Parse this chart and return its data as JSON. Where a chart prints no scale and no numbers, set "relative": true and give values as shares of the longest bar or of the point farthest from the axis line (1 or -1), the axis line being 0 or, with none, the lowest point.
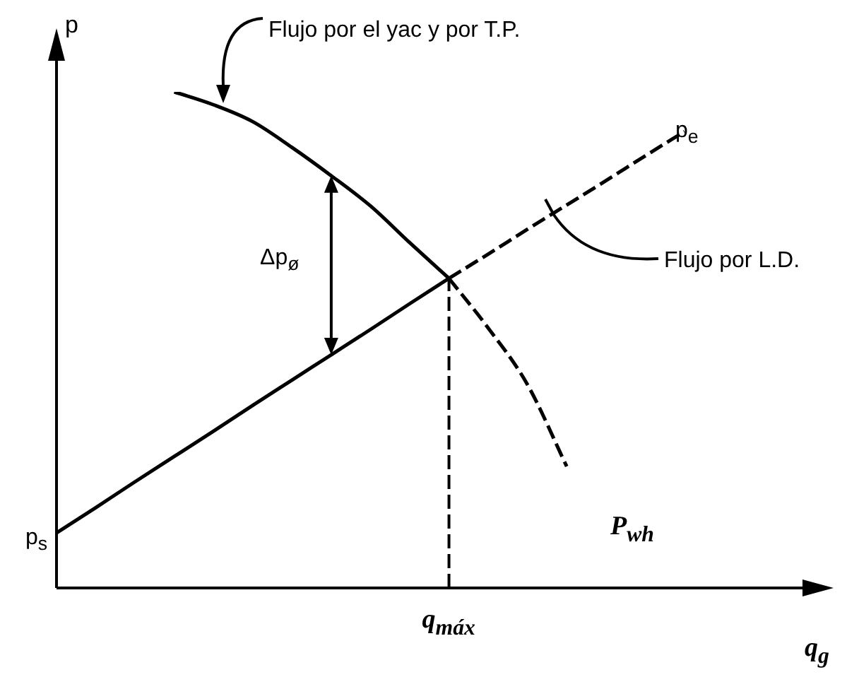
{
  "chart_data": {
    "type": "line",
    "relative": true,
    "xlabel": "q$_{g}$",
    "ylabel": "p",
    "legend": false,
    "categories": [
      null,
      null,
      null,
      null,
      null,
      null,
      null,
      null,
      null,
      null,
      null,
      null,
      null,
      null,
      null,
      null,
      null,
      null,
      null
    ],
    "series": [
      {
        "values": [
          0.111,
          0.162,
          0.214,
          0.265,
          0.316,
          0.368,
          0.419,
          0.47,
          0.521,
          0.573,
          0.624,
          null,
          null,
          null,
          null,
          null,
          null,
          null,
          null
        ],
        "color": "#000000",
        "line_style": "solid"
      },
      {
        "values": [
          null,
          null,
          null,
          null,
          null,
          null,
          null,
          null,
          null,
          null,
          0.624,
          0.673,
          0.723,
          0.772,
          0.821,
          0.871,
          0.92,
          null,
          null
        ],
        "color": "#000000",
        "line_style": "dashed"
      },
      {
        "values": [
          null,
          null,
          null,
          1.0,
          0.974,
          0.94,
          0.888,
          0.831,
          0.77,
          0.696,
          0.624,
          null,
          null,
          null,
          null,
          null,
          null,
          null,
          null
        ],
        "color": "#000000",
        "line_style": "solid"
      },
      {
        "values": [
          null,
          null,
          null,
          null,
          null,
          null,
          null,
          null,
          null,
          null,
          0.624,
          0.524,
          0.41,
          0.245,
          null,
          null,
          null,
          null,
          null
        ],
        "color": "#000000",
        "line_style": "dashed"
      }
    ],
    "annotations": [
      "Flujo por el yac y por T.P.",
      "Flujo por L.D.",
      "p$_{e}$",
      "p$_{s}$",
      "P$_{wh}$",
      "Δp$_{ø}$",
      "q$_{máx}$"
    ]
  }
}
